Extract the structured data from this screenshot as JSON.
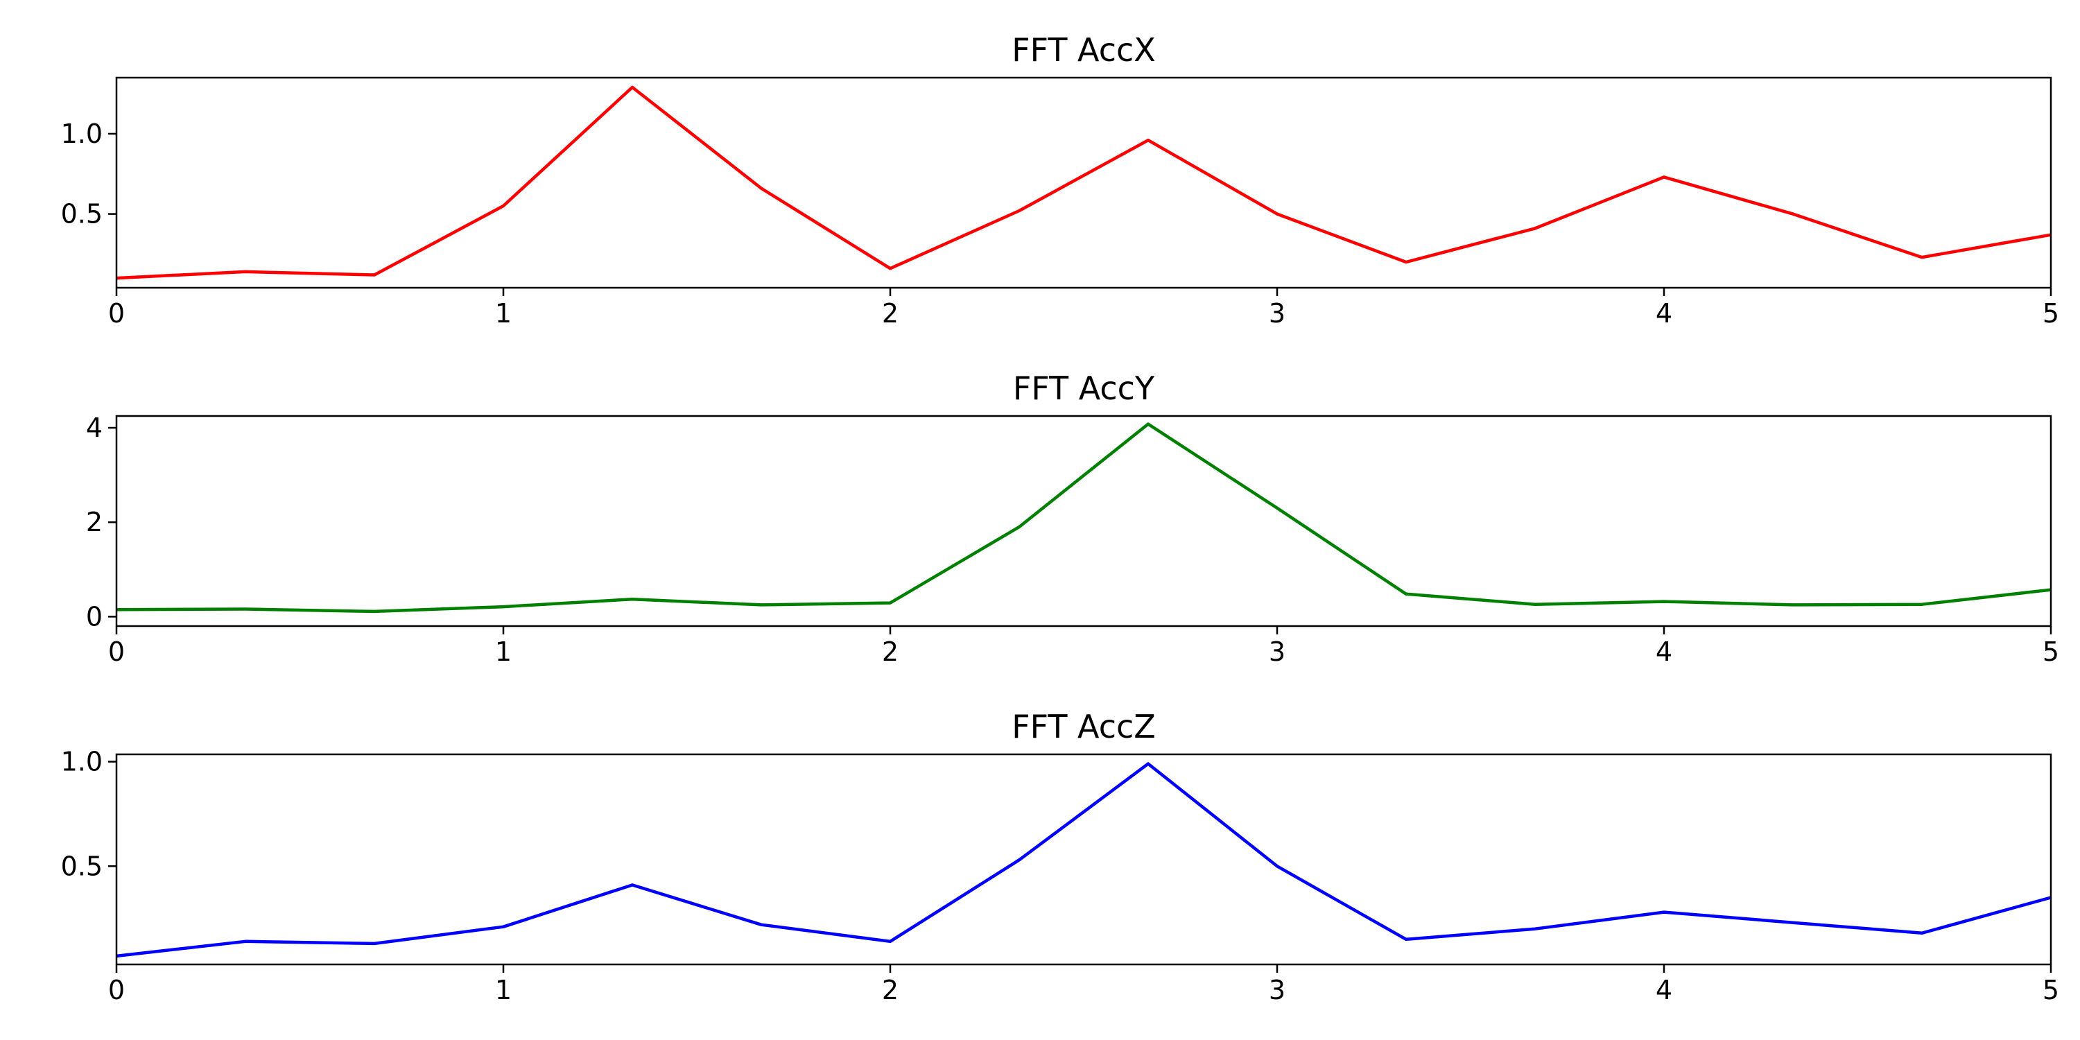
{
  "chart_data": [
    {
      "type": "line",
      "title": "FFT AccX",
      "xlabel": "",
      "ylabel": "",
      "x": [
        0,
        0.3333,
        0.6667,
        1.0,
        1.3333,
        1.6667,
        2.0,
        2.3333,
        2.6667,
        3.0,
        3.3333,
        3.6667,
        4.0,
        4.3333,
        4.6667,
        5.0
      ],
      "series": [
        {
          "color": "#ff0000",
          "values": [
            0.1,
            0.14,
            0.12,
            0.55,
            1.29,
            0.66,
            0.16,
            0.52,
            0.96,
            0.5,
            0.2,
            0.41,
            0.73,
            0.5,
            0.23,
            0.37
          ]
        }
      ],
      "xlim": [
        0,
        5
      ],
      "ylim": [
        0.04,
        1.35
      ],
      "xticks": [
        0,
        1,
        2,
        3,
        4,
        5
      ],
      "yticks": [
        0.5,
        1.0
      ],
      "xtick_labels": [
        "0",
        "1",
        "2",
        "3",
        "4",
        "5"
      ],
      "ytick_labels": [
        "0.5",
        "1.0"
      ],
      "grid": false
    },
    {
      "type": "line",
      "title": "FFT AccY",
      "xlabel": "",
      "ylabel": "",
      "x": [
        0,
        0.3333,
        0.6667,
        1.0,
        1.3333,
        1.6667,
        2.0,
        2.3333,
        2.6667,
        3.0,
        3.3333,
        3.6667,
        4.0,
        4.3333,
        4.6667,
        5.0
      ],
      "series": [
        {
          "color": "#008000",
          "values": [
            0.15,
            0.16,
            0.11,
            0.21,
            0.37,
            0.25,
            0.29,
            1.9,
            4.08,
            2.3,
            0.48,
            0.26,
            0.32,
            0.25,
            0.26,
            0.57
          ]
        }
      ],
      "xlim": [
        0,
        5
      ],
      "ylim": [
        -0.2,
        4.25
      ],
      "xticks": [
        0,
        1,
        2,
        3,
        4,
        5
      ],
      "yticks": [
        0,
        2,
        4
      ],
      "xtick_labels": [
        "0",
        "1",
        "2",
        "3",
        "4",
        "5"
      ],
      "ytick_labels": [
        "0",
        "2",
        "4"
      ],
      "grid": false
    },
    {
      "type": "line",
      "title": "FFT AccZ",
      "xlabel": "",
      "ylabel": "",
      "x": [
        0,
        0.3333,
        0.6667,
        1.0,
        1.3333,
        1.6667,
        2.0,
        2.3333,
        2.6667,
        3.0,
        3.3333,
        3.6667,
        4.0,
        4.3333,
        4.6667,
        5.0
      ],
      "series": [
        {
          "color": "#0000ff",
          "values": [
            0.07,
            0.14,
            0.13,
            0.21,
            0.41,
            0.22,
            0.14,
            0.53,
            0.99,
            0.5,
            0.15,
            0.2,
            0.28,
            0.23,
            0.18,
            0.35
          ]
        }
      ],
      "xlim": [
        0,
        5
      ],
      "ylim": [
        0.03,
        1.035
      ],
      "xticks": [
        0,
        1,
        2,
        3,
        4,
        5
      ],
      "yticks": [
        0.5,
        1.0
      ],
      "xtick_labels": [
        "0",
        "1",
        "2",
        "3",
        "4",
        "5"
      ],
      "ytick_labels": [
        "0.5",
        "1.0"
      ],
      "grid": false
    }
  ]
}
